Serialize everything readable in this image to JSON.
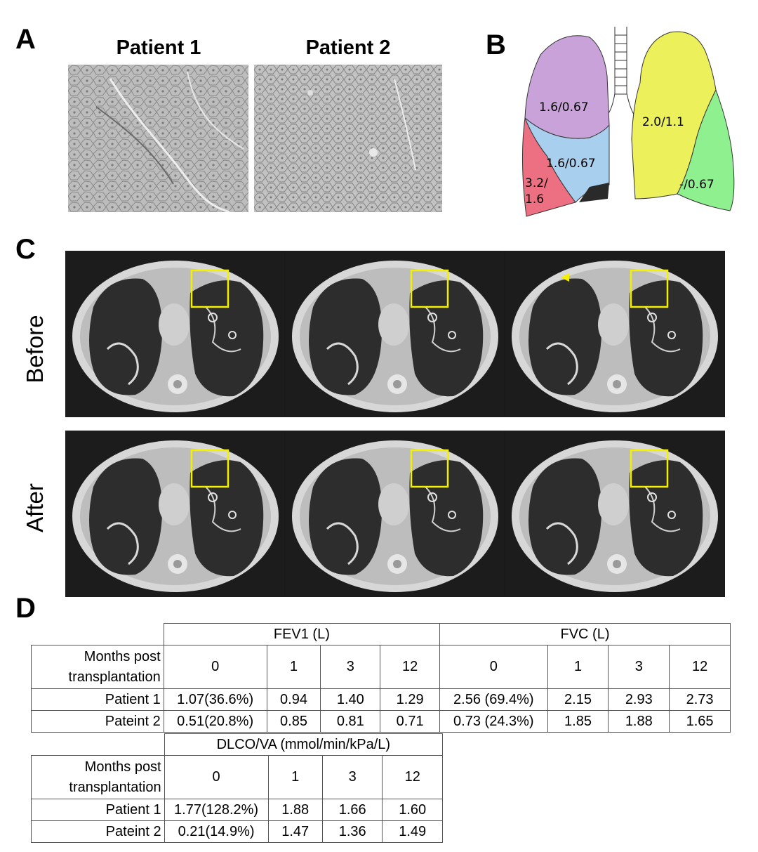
{
  "panels": {
    "a": "A",
    "b": "B",
    "c": "C",
    "d": "D"
  },
  "panel_a": {
    "patient1_title": "Patient 1",
    "patient2_title": "Patient 2"
  },
  "panel_b": {
    "labels": {
      "right_upper": "1.6/0.67",
      "right_middle": "1.6/0.67",
      "right_lower_line1": "3.2/",
      "right_lower_line2": "1.6",
      "left_upper": "2.0/1.1",
      "left_lower": "-/0.67"
    },
    "colors": {
      "right_upper": "#c8a2d8",
      "right_middle": "#a8cfee",
      "right_lower": "#ec6f82",
      "left_upper": "#ecf05a",
      "left_lower": "#8ff090",
      "dark_patch": "#2a2a2a"
    }
  },
  "panel_c": {
    "row_before": "Before",
    "row_after": "After",
    "roi_color": "#f5f000"
  },
  "panel_d": {
    "fev1_header": "FEV1 (L)",
    "fvc_header": "FVC (L)",
    "dlco_header": "DLCO/VA (mmol/min/kPa/L)",
    "months_label_line1": "Months post",
    "months_label_line2": "transplantation",
    "months": [
      "0",
      "1",
      "3",
      "12"
    ],
    "fev1_fvc_rows": [
      {
        "name": "Patient 1",
        "fev1": [
          "1.07(36.6%)",
          "0.94",
          "1.40",
          "1.29"
        ],
        "fvc": [
          "2.56 (69.4%)",
          "2.15",
          "2.93",
          "2.73"
        ]
      },
      {
        "name": "Pateint 2",
        "fev1": [
          "0.51(20.8%)",
          "0.85",
          "0.81",
          "0.71"
        ],
        "fvc": [
          "0.73 (24.3%)",
          "1.85",
          "1.88",
          "1.65"
        ]
      }
    ],
    "dlco_rows": [
      {
        "name": "Patient 1",
        "values": [
          "1.77(128.2%)",
          "1.88",
          "1.66",
          "1.60"
        ]
      },
      {
        "name": "Pateint 2",
        "values": [
          "0.21(14.9%)",
          "1.47",
          "1.36",
          "1.49"
        ]
      }
    ]
  }
}
